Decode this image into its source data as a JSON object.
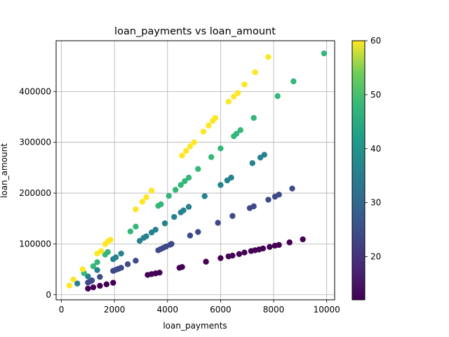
{
  "chart_data": {
    "type": "scatter",
    "title": "loan_payments vs loan_amount",
    "xlabel": "loan_payments",
    "ylabel": "loan_amount",
    "xlim": [
      -200,
      10300
    ],
    "ylim": [
      -10000,
      500000
    ],
    "xticks": [
      0,
      2000,
      4000,
      6000,
      8000,
      10000
    ],
    "yticks": [
      0,
      100000,
      200000,
      300000,
      400000
    ],
    "grid": true,
    "colorbar": {
      "colormap": "viridis",
      "range": [
        12,
        60
      ],
      "ticks": [
        20,
        30,
        40,
        50,
        60
      ]
    },
    "points": [
      {
        "x": 1000,
        "y": 12000,
        "c": 12
      },
      {
        "x": 1200,
        "y": 14500,
        "c": 12
      },
      {
        "x": 1450,
        "y": 17500,
        "c": 12
      },
      {
        "x": 1700,
        "y": 20500,
        "c": 12
      },
      {
        "x": 1950,
        "y": 23500,
        "c": 12
      },
      {
        "x": 3250,
        "y": 39000,
        "c": 12
      },
      {
        "x": 3400,
        "y": 40500,
        "c": 12
      },
      {
        "x": 3550,
        "y": 42000,
        "c": 12
      },
      {
        "x": 3700,
        "y": 43500,
        "c": 12
      },
      {
        "x": 4450,
        "y": 53000,
        "c": 12
      },
      {
        "x": 4550,
        "y": 54500,
        "c": 12
      },
      {
        "x": 5450,
        "y": 65000,
        "c": 12
      },
      {
        "x": 6000,
        "y": 72000,
        "c": 12
      },
      {
        "x": 6300,
        "y": 75500,
        "c": 12
      },
      {
        "x": 6450,
        "y": 77000,
        "c": 12
      },
      {
        "x": 6700,
        "y": 80000,
        "c": 12
      },
      {
        "x": 6900,
        "y": 83000,
        "c": 12
      },
      {
        "x": 7150,
        "y": 86000,
        "c": 12
      },
      {
        "x": 7300,
        "y": 87500,
        "c": 12
      },
      {
        "x": 7450,
        "y": 89000,
        "c": 12
      },
      {
        "x": 7600,
        "y": 91000,
        "c": 12
      },
      {
        "x": 7850,
        "y": 94000,
        "c": 12
      },
      {
        "x": 8050,
        "y": 96500,
        "c": 12
      },
      {
        "x": 8200,
        "y": 98000,
        "c": 12
      },
      {
        "x": 8600,
        "y": 103000,
        "c": 12
      },
      {
        "x": 9100,
        "y": 109000,
        "c": 12
      },
      {
        "x": 1000,
        "y": 24000,
        "c": 24
      },
      {
        "x": 1100,
        "y": 26500,
        "c": 24
      },
      {
        "x": 1150,
        "y": 28000,
        "c": 24
      },
      {
        "x": 1450,
        "y": 35000,
        "c": 24
      },
      {
        "x": 1950,
        "y": 47000,
        "c": 24
      },
      {
        "x": 2050,
        "y": 49000,
        "c": 24
      },
      {
        "x": 2150,
        "y": 51000,
        "c": 24
      },
      {
        "x": 2250,
        "y": 53000,
        "c": 24
      },
      {
        "x": 2500,
        "y": 60000,
        "c": 24
      },
      {
        "x": 2800,
        "y": 67000,
        "c": 24
      },
      {
        "x": 3650,
        "y": 87500,
        "c": 24
      },
      {
        "x": 3750,
        "y": 90000,
        "c": 24
      },
      {
        "x": 3850,
        "y": 92500,
        "c": 24
      },
      {
        "x": 3950,
        "y": 95000,
        "c": 24
      },
      {
        "x": 4100,
        "y": 98500,
        "c": 24
      },
      {
        "x": 4150,
        "y": 100000,
        "c": 24
      },
      {
        "x": 4850,
        "y": 116500,
        "c": 24
      },
      {
        "x": 5150,
        "y": 123500,
        "c": 24
      },
      {
        "x": 5900,
        "y": 141500,
        "c": 24
      },
      {
        "x": 6450,
        "y": 155000,
        "c": 24
      },
      {
        "x": 7100,
        "y": 170500,
        "c": 24
      },
      {
        "x": 7250,
        "y": 174000,
        "c": 24
      },
      {
        "x": 7800,
        "y": 187000,
        "c": 24
      },
      {
        "x": 8050,
        "y": 193000,
        "c": 24
      },
      {
        "x": 8200,
        "y": 197000,
        "c": 24
      },
      {
        "x": 8700,
        "y": 209000,
        "c": 24
      },
      {
        "x": 600,
        "y": 22000,
        "c": 36
      },
      {
        "x": 1000,
        "y": 36000,
        "c": 36
      },
      {
        "x": 1350,
        "y": 48500,
        "c": 36
      },
      {
        "x": 1950,
        "y": 70000,
        "c": 36
      },
      {
        "x": 2050,
        "y": 73500,
        "c": 36
      },
      {
        "x": 2250,
        "y": 81000,
        "c": 36
      },
      {
        "x": 2950,
        "y": 106000,
        "c": 36
      },
      {
        "x": 3100,
        "y": 112000,
        "c": 36
      },
      {
        "x": 3200,
        "y": 115000,
        "c": 36
      },
      {
        "x": 3400,
        "y": 122500,
        "c": 36
      },
      {
        "x": 3550,
        "y": 128000,
        "c": 36
      },
      {
        "x": 3900,
        "y": 140500,
        "c": 36
      },
      {
        "x": 4250,
        "y": 153000,
        "c": 36
      },
      {
        "x": 4500,
        "y": 162000,
        "c": 36
      },
      {
        "x": 4600,
        "y": 166000,
        "c": 36
      },
      {
        "x": 4800,
        "y": 173000,
        "c": 36
      },
      {
        "x": 5400,
        "y": 194000,
        "c": 36
      },
      {
        "x": 6000,
        "y": 216000,
        "c": 36
      },
      {
        "x": 6250,
        "y": 225000,
        "c": 36
      },
      {
        "x": 6400,
        "y": 230500,
        "c": 36
      },
      {
        "x": 7200,
        "y": 259000,
        "c": 36
      },
      {
        "x": 7500,
        "y": 270000,
        "c": 36
      },
      {
        "x": 7650,
        "y": 275500,
        "c": 36
      },
      {
        "x": 850,
        "y": 42500,
        "c": 48
      },
      {
        "x": 1200,
        "y": 56000,
        "c": 48
      },
      {
        "x": 1350,
        "y": 64000,
        "c": 48
      },
      {
        "x": 1650,
        "y": 79000,
        "c": 48
      },
      {
        "x": 1750,
        "y": 84000,
        "c": 48
      },
      {
        "x": 2600,
        "y": 124500,
        "c": 48
      },
      {
        "x": 2800,
        "y": 134000,
        "c": 48
      },
      {
        "x": 3650,
        "y": 175000,
        "c": 48
      },
      {
        "x": 3750,
        "y": 178000,
        "c": 48
      },
      {
        "x": 4050,
        "y": 194500,
        "c": 48
      },
      {
        "x": 4300,
        "y": 206500,
        "c": 48
      },
      {
        "x": 4500,
        "y": 216000,
        "c": 48
      },
      {
        "x": 4650,
        "y": 223500,
        "c": 48
      },
      {
        "x": 4800,
        "y": 230500,
        "c": 48
      },
      {
        "x": 5150,
        "y": 247500,
        "c": 48
      },
      {
        "x": 5650,
        "y": 271000,
        "c": 48
      },
      {
        "x": 6000,
        "y": 288000,
        "c": 48
      },
      {
        "x": 6500,
        "y": 312000,
        "c": 48
      },
      {
        "x": 6600,
        "y": 317000,
        "c": 48
      },
      {
        "x": 6750,
        "y": 324000,
        "c": 48
      },
      {
        "x": 7250,
        "y": 348000,
        "c": 48
      },
      {
        "x": 8150,
        "y": 391000,
        "c": 48
      },
      {
        "x": 8750,
        "y": 420000,
        "c": 48
      },
      {
        "x": 9900,
        "y": 475000,
        "c": 48
      },
      {
        "x": 300,
        "y": 18000,
        "c": 60
      },
      {
        "x": 450,
        "y": 30000,
        "c": 60
      },
      {
        "x": 800,
        "y": 50000,
        "c": 60
      },
      {
        "x": 1350,
        "y": 81000,
        "c": 60
      },
      {
        "x": 1500,
        "y": 86000,
        "c": 60
      },
      {
        "x": 1650,
        "y": 99500,
        "c": 60
      },
      {
        "x": 1750,
        "y": 105000,
        "c": 60
      },
      {
        "x": 1850,
        "y": 108000,
        "c": 60
      },
      {
        "x": 2800,
        "y": 168000,
        "c": 60
      },
      {
        "x": 3050,
        "y": 183000,
        "c": 60
      },
      {
        "x": 3200,
        "y": 192000,
        "c": 60
      },
      {
        "x": 3400,
        "y": 205000,
        "c": 60
      },
      {
        "x": 4550,
        "y": 274000,
        "c": 60
      },
      {
        "x": 4700,
        "y": 283000,
        "c": 60
      },
      {
        "x": 4850,
        "y": 292000,
        "c": 60
      },
      {
        "x": 5000,
        "y": 300000,
        "c": 60
      },
      {
        "x": 5350,
        "y": 321000,
        "c": 60
      },
      {
        "x": 5550,
        "y": 333000,
        "c": 60
      },
      {
        "x": 5700,
        "y": 342000,
        "c": 60
      },
      {
        "x": 5800,
        "y": 348000,
        "c": 60
      },
      {
        "x": 6300,
        "y": 380000,
        "c": 60
      },
      {
        "x": 6500,
        "y": 390000,
        "c": 60
      },
      {
        "x": 6650,
        "y": 397000,
        "c": 60
      },
      {
        "x": 6900,
        "y": 414000,
        "c": 60
      },
      {
        "x": 7300,
        "y": 438000,
        "c": 60
      },
      {
        "x": 7800,
        "y": 468000,
        "c": 60
      }
    ]
  }
}
